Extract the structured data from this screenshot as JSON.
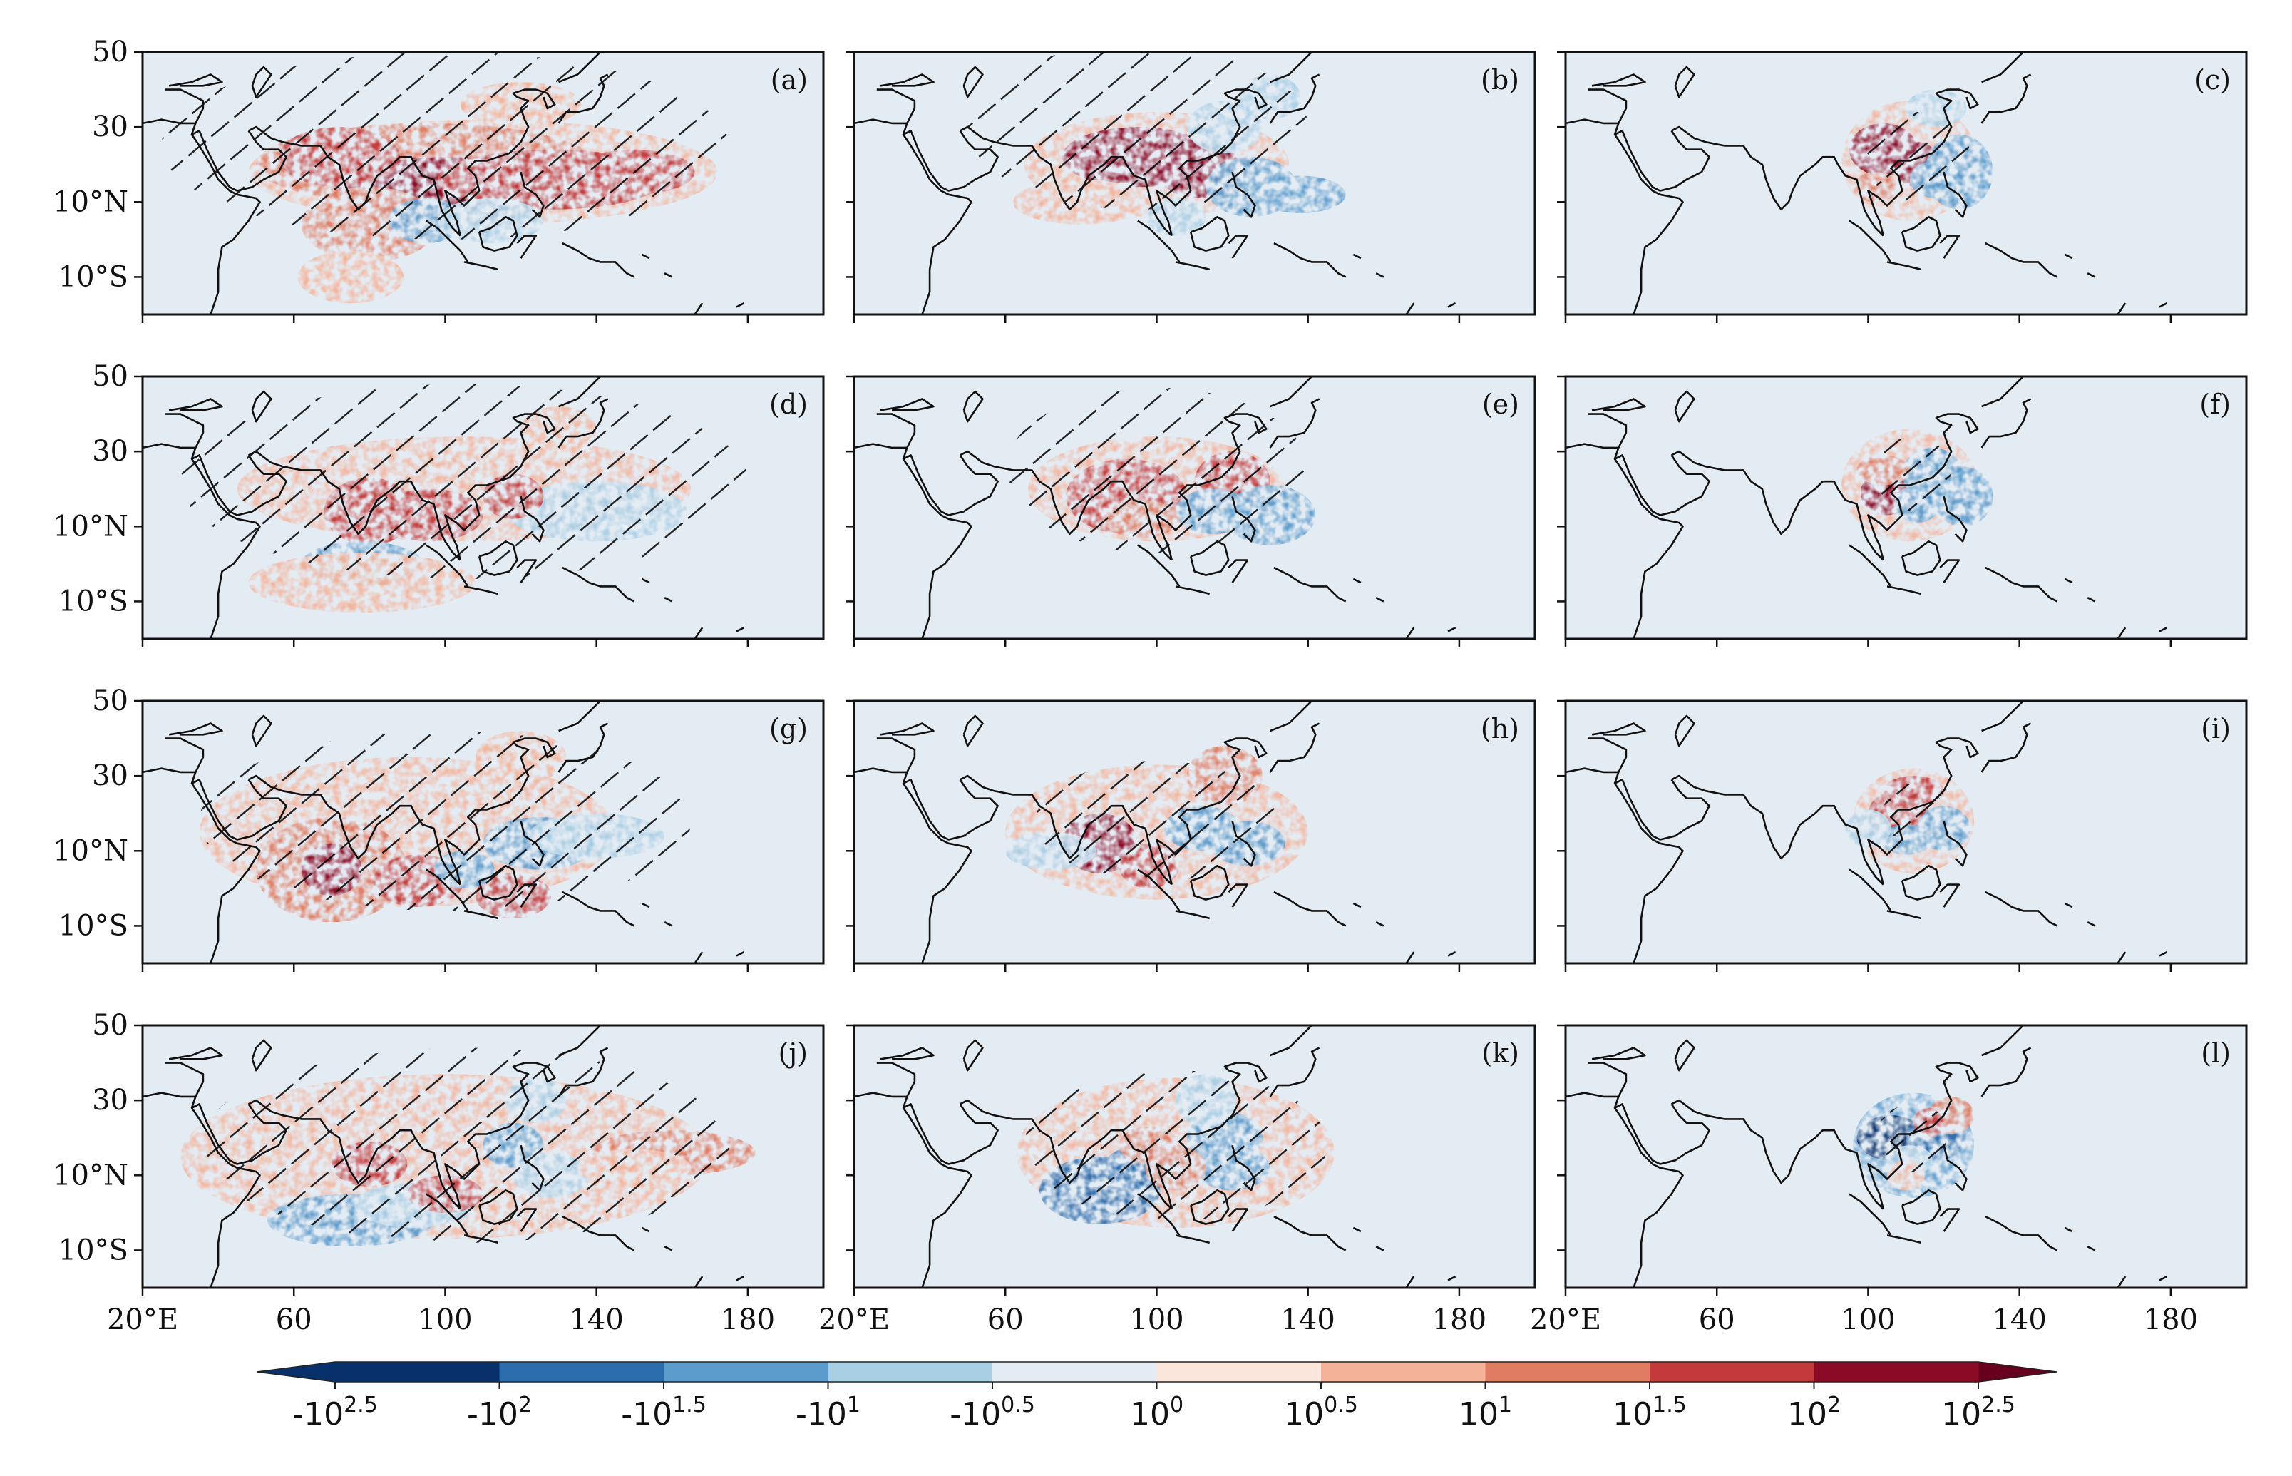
{
  "figure": {
    "panel_rows": [
      [
        "(a)",
        "(b)",
        "(c)"
      ],
      [
        "(d)",
        "(e)",
        "(f)"
      ],
      [
        "(g)",
        "(h)",
        "(i)"
      ],
      [
        "(j)",
        "(k)",
        "(l)"
      ]
    ],
    "y_ticks": [
      "50",
      "30",
      "10°N",
      "10°S"
    ],
    "x_ticks": [
      "20°E",
      "60",
      "100",
      "140",
      "180"
    ],
    "colorbar": {
      "levels": [
        {
          "base": "-10",
          "exp": "2.5"
        },
        {
          "base": "-10",
          "exp": "2"
        },
        {
          "base": "-10",
          "exp": "1.5"
        },
        {
          "base": "-10",
          "exp": "1"
        },
        {
          "base": "-10",
          "exp": "0.5"
        },
        {
          "base": "10",
          "exp": "0"
        },
        {
          "base": "10",
          "exp": "0.5"
        },
        {
          "base": "10",
          "exp": "1"
        },
        {
          "base": "10",
          "exp": "1.5"
        },
        {
          "base": "10",
          "exp": "2"
        },
        {
          "base": "10",
          "exp": "2.5"
        }
      ],
      "colors": [
        "#08306b",
        "#2c6ead",
        "#5b9ccc",
        "#a9cfe5",
        "#e3ebf3",
        "#fbe6db",
        "#f4b298",
        "#e07c62",
        "#c43a3a",
        "#8b0a25"
      ],
      "extend_low": "#08306b",
      "extend_high": "#67001f"
    },
    "background_color": "#e4ecf3"
  },
  "chart_data": {
    "type": "heatmap",
    "title": "",
    "layout": "4 rows x 3 columns of map panels",
    "x_axis": {
      "label": "",
      "unit": "degrees east",
      "range": [
        20,
        200
      ],
      "ticks": [
        20,
        60,
        100,
        140,
        180
      ]
    },
    "y_axis": {
      "label": "",
      "unit": "degrees latitude",
      "range": [
        -20,
        50
      ],
      "ticks": [
        50,
        30,
        10,
        -10
      ]
    },
    "colorbar_levels": [
      "-10^2.5",
      "-10^2",
      "-10^1.5",
      "-10^1",
      "-10^0.5",
      "10^0",
      "10^0.5",
      "10^1",
      "10^1.5",
      "10^2",
      "10^2.5"
    ],
    "colorbar_extend": "both",
    "hatching": "diagonal hatching marks stippled significant regions",
    "panels": [
      {
        "label": "(a)",
        "lon": [
          45,
          190
        ],
        "lat": [
          -20,
          48
        ],
        "dominant": "positive",
        "hatched": true
      },
      {
        "label": "(b)",
        "lon": [
          60,
          160
        ],
        "lat": [
          -10,
          48
        ],
        "dominant": "positive",
        "hatched": true
      },
      {
        "label": "(c)",
        "lon": [
          92,
          132
        ],
        "lat": [
          0,
          40
        ],
        "dominant": "positive with negative to the east",
        "hatched": true
      },
      {
        "label": "(d)",
        "lon": [
          45,
          190
        ],
        "lat": [
          -20,
          48
        ],
        "dominant": "mixed",
        "hatched": true
      },
      {
        "label": "(e)",
        "lon": [
          60,
          160
        ],
        "lat": [
          -10,
          48
        ],
        "dominant": "mixed",
        "hatched": true
      },
      {
        "label": "(f)",
        "lon": [
          92,
          132
        ],
        "lat": [
          0,
          40
        ],
        "dominant": "mixed",
        "hatched": true
      },
      {
        "label": "(g)",
        "lon": [
          45,
          180
        ],
        "lat": [
          -20,
          48
        ],
        "dominant": "mixed",
        "hatched": true
      },
      {
        "label": "(h)",
        "lon": [
          65,
          150
        ],
        "lat": [
          -10,
          45
        ],
        "dominant": "mixed",
        "hatched": true
      },
      {
        "label": "(i)",
        "lon": [
          92,
          132
        ],
        "lat": [
          0,
          40
        ],
        "dominant": "mixed",
        "hatched": true
      },
      {
        "label": "(j)",
        "lon": [
          40,
          190
        ],
        "lat": [
          -20,
          48
        ],
        "dominant": "mixed",
        "hatched": true
      },
      {
        "label": "(k)",
        "lon": [
          60,
          160
        ],
        "lat": [
          -10,
          48
        ],
        "dominant": "negative",
        "hatched": true
      },
      {
        "label": "(l)",
        "lon": [
          92,
          132
        ],
        "lat": [
          0,
          40
        ],
        "dominant": "negative",
        "hatched": true
      }
    ]
  }
}
